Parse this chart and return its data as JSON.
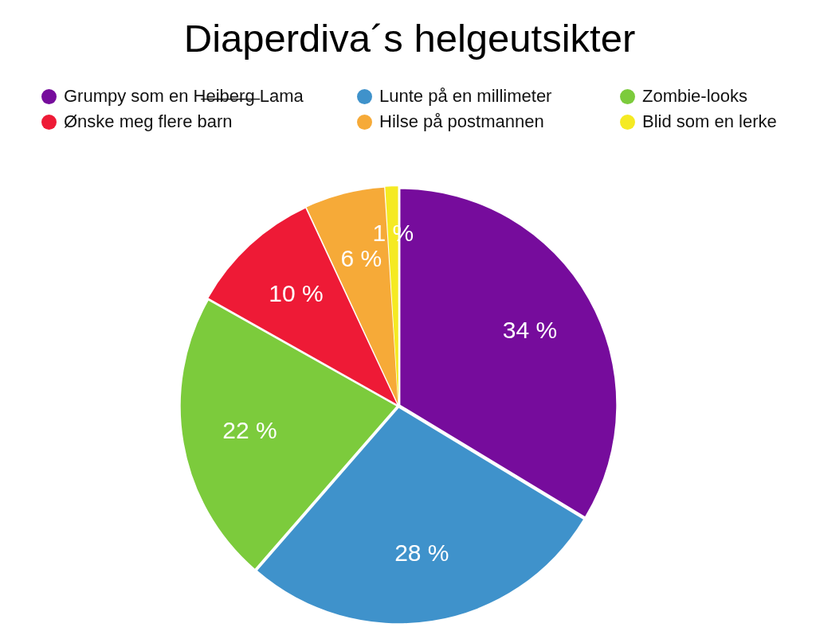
{
  "chart_data": {
    "type": "pie",
    "title": "Diaperdiva´s helgeutsikter",
    "categories": [
      "Grumpy som en H̶e̶i̶b̶e̶r̶g̶ Lama",
      "Lunte på en millimeter",
      "Zombie-looks",
      "Ønske meg flere barn",
      "Hilse på postmannen",
      "Blid som en lerke"
    ],
    "values": [
      34,
      28,
      22,
      10,
      6,
      1
    ],
    "colors": [
      "#760c9c",
      "#3f92cb",
      "#7ccb3c",
      "#ee1a36",
      "#f6aa38",
      "#f5ea22"
    ],
    "value_labels": [
      "34 %",
      "28 %",
      "22 %",
      "10 %",
      "6 %",
      "1 %"
    ],
    "legend": "top"
  }
}
